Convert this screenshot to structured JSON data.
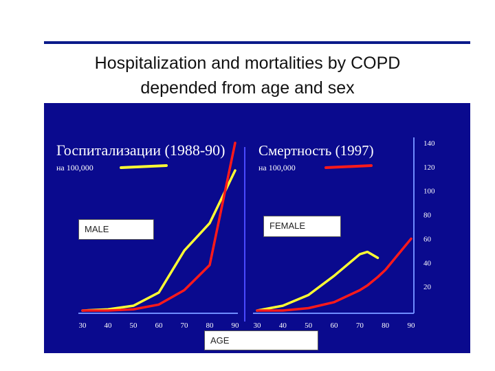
{
  "title": {
    "line1": "Hospitalization  and  mortalities  by  COPD",
    "line2": "depended from  age  and   sex"
  },
  "labels": {
    "male": "MALE",
    "female": "FEMALE",
    "age": "AGE"
  },
  "colors": {
    "panel_bg": "#0a0a8e",
    "rule": "#0a1a8a",
    "male": "#ffff33",
    "female": "#ff1a1a",
    "axis_text": "#ffffff"
  },
  "chart_data": [
    {
      "type": "line",
      "title": "Госпитализации (1988-90)",
      "subtitle": "на 100,000",
      "x": [
        30,
        40,
        50,
        60,
        70,
        80,
        90
      ],
      "xlim": [
        30,
        90
      ],
      "ylim": [
        0,
        140
      ],
      "series": [
        {
          "values": [
            0,
            1,
            4,
            15,
            50,
            73,
            117
          ],
          "color": "#ffff33"
        },
        {
          "values": [
            0,
            0,
            1,
            5,
            17,
            38,
            140
          ],
          "color": "#ff1a1a"
        }
      ]
    },
    {
      "type": "line",
      "title": "Смертность (1997)",
      "subtitle": "на 100,000",
      "x": [
        30,
        40,
        50,
        60,
        70,
        73,
        77,
        80,
        90
      ],
      "xlim": [
        30,
        90
      ],
      "ylim": [
        0,
        140
      ],
      "yticks": [
        20,
        40,
        60,
        80,
        100,
        120,
        140
      ],
      "series": [
        {
          "values": [
            0,
            4,
            13,
            29,
            47,
            49,
            44,
            null,
            null
          ],
          "color": "#ffff33"
        },
        {
          "values": [
            0,
            0,
            2,
            7,
            17,
            21,
            28,
            34,
            60
          ],
          "color": "#ff1a1a"
        }
      ]
    }
  ]
}
